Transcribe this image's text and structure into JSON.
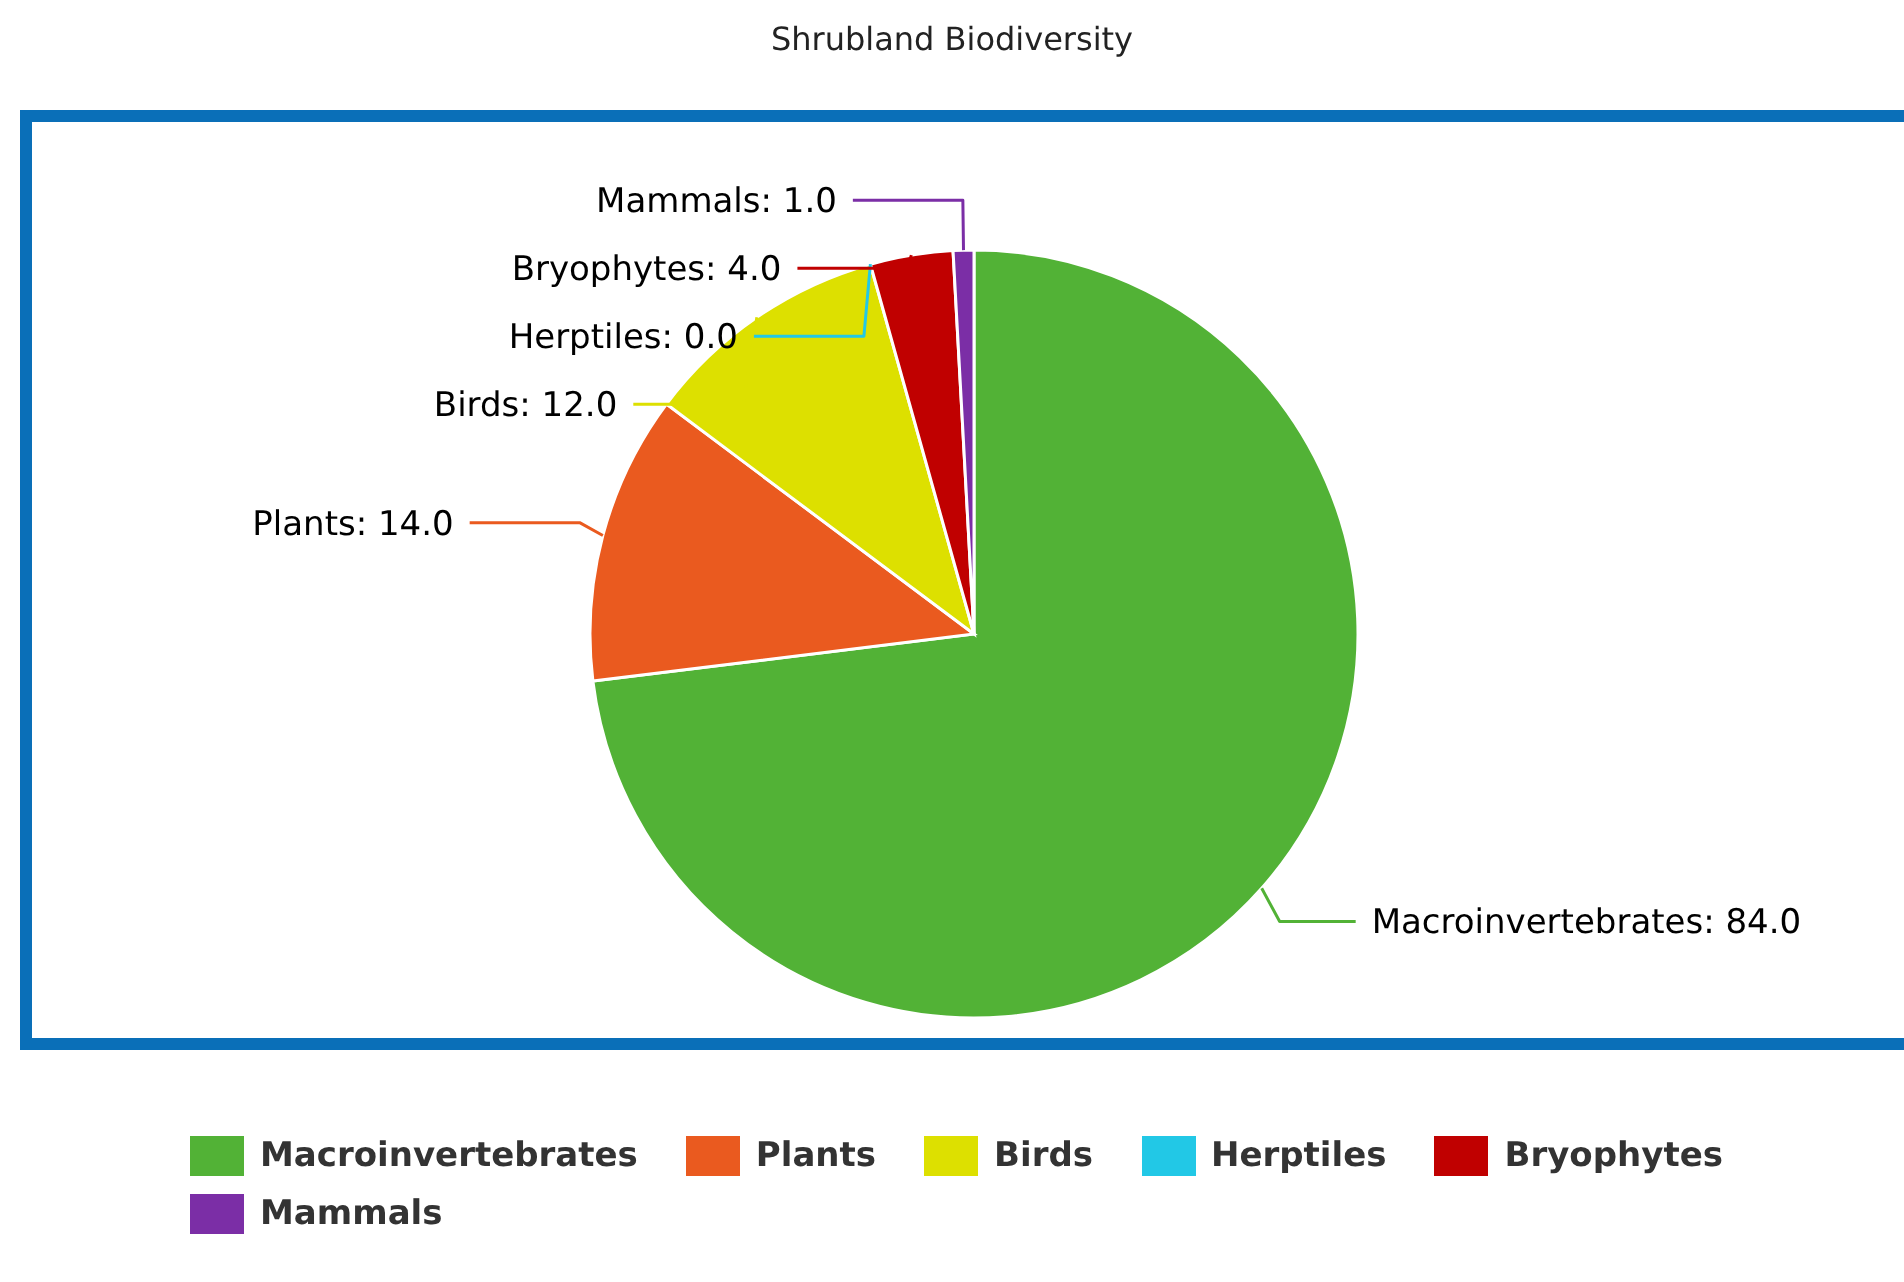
{
  "chart_data": {
    "type": "pie",
    "title": "Shrubland Biodiversity",
    "categories": [
      "Macroinvertebrates",
      "Plants",
      "Birds",
      "Herptiles",
      "Bryophytes",
      "Mammals"
    ],
    "values": [
      84,
      14,
      12,
      0,
      4,
      1
    ],
    "value_labels": [
      "Macroinvertebrates: 84.0",
      "Plants: 14.0",
      "Birds: 12.0",
      "Herptiles: 0.0",
      "Bryophytes: 4.0",
      "Mammals: 1.0"
    ],
    "colors": [
      "#52b236",
      "#ea5a1f",
      "#dde000",
      "#22c8e6",
      "#c00000",
      "#7b2ea6"
    ],
    "legend": "bottom"
  }
}
